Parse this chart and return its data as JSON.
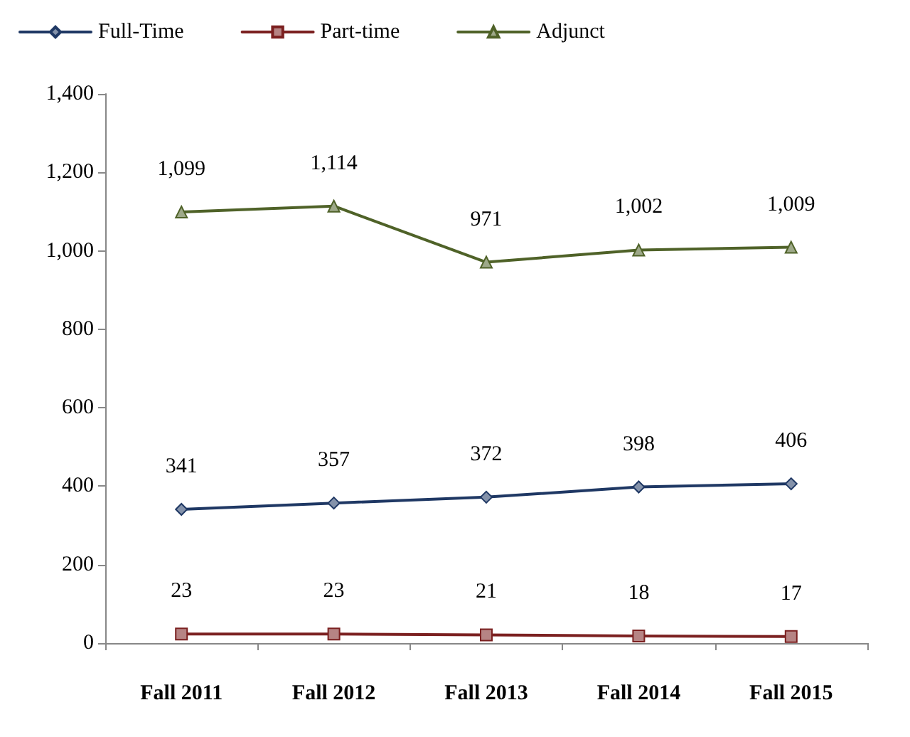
{
  "chart_data": {
    "type": "line",
    "categories": [
      "Fall 2011",
      "Fall 2012",
      "Fall 2013",
      "Fall 2014",
      "Fall 2015"
    ],
    "series": [
      {
        "name": "Full-Time",
        "color": "#1f3864",
        "marker": "diamond",
        "values": [
          341,
          357,
          372,
          398,
          406
        ],
        "value_labels": [
          "341",
          "357",
          "372",
          "398",
          "406"
        ]
      },
      {
        "name": "Part-time",
        "color": "#7b2020",
        "marker": "square",
        "values": [
          23,
          23,
          21,
          18,
          17
        ],
        "value_labels": [
          "23",
          "23",
          "21",
          "18",
          "17"
        ]
      },
      {
        "name": "Adjunct",
        "color": "#4f6228",
        "marker": "triangle",
        "values": [
          1099,
          1114,
          971,
          1002,
          1009
        ],
        "value_labels": [
          "1,099",
          "1,114",
          "971",
          "1,002",
          "1,009"
        ]
      }
    ],
    "ylim": [
      0,
      1400
    ],
    "yticks": [
      0,
      200,
      400,
      600,
      800,
      {
        "value": 1000,
        "label": "1,000"
      },
      {
        "value": 1200,
        "label": "1,200"
      },
      {
        "value": 1400,
        "label": "1,400"
      }
    ],
    "grid": false,
    "legend": "top left",
    "line_style": "solid"
  }
}
